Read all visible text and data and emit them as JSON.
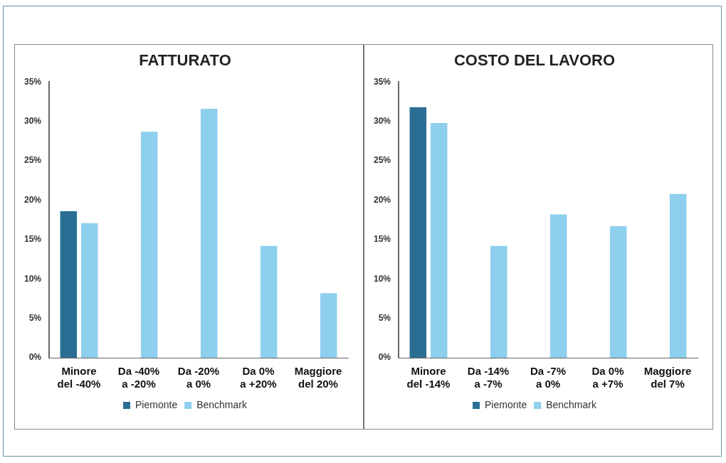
{
  "chart_data": [
    {
      "type": "bar",
      "title": "FATTURATO",
      "categories": [
        "Minore\ndel -40%",
        "Da -40%\na -20%",
        "Da -20%\na 0%",
        "Da 0%\na +20%",
        "Maggiore\ndel 20%"
      ],
      "series": [
        {
          "name": "Piemonte",
          "color": "#2a6f93",
          "values": [
            18.6,
            null,
            null,
            null,
            null
          ]
        },
        {
          "name": "Benchmark",
          "color": "#8ecfee",
          "values": [
            17.1,
            28.7,
            31.6,
            14.2,
            8.2
          ]
        }
      ],
      "ylim": [
        0,
        35
      ],
      "yticks": [
        {
          "value": 0,
          "label": "0%"
        },
        {
          "value": 5,
          "label": "5%"
        },
        {
          "value": 10,
          "label": "10%"
        },
        {
          "value": 15,
          "label": "15%"
        },
        {
          "value": 20,
          "label": "20%"
        },
        {
          "value": 25,
          "label": "25%"
        },
        {
          "value": 30,
          "label": "30%"
        },
        {
          "value": 35,
          "label": "35%"
        }
      ],
      "grid": false,
      "legend": "bottom"
    },
    {
      "type": "bar",
      "title": "COSTO DEL LAVORO",
      "categories": [
        "Minore\ndel -14%",
        "Da -14%\na -7%",
        "Da -7%\na 0%",
        "Da 0%\na +7%",
        "Maggiore\ndel 7%"
      ],
      "series": [
        {
          "name": "Piemonte",
          "color": "#2a6f93",
          "values": [
            31.8,
            null,
            null,
            null,
            null
          ]
        },
        {
          "name": "Benchmark",
          "color": "#8ecfee",
          "values": [
            29.8,
            14.2,
            18.2,
            16.7,
            20.8
          ]
        }
      ],
      "ylim": [
        0,
        35
      ],
      "yticks": [
        {
          "value": 0,
          "label": "0%"
        },
        {
          "value": 5,
          "label": "5%"
        },
        {
          "value": 10,
          "label": "10%"
        },
        {
          "value": 15,
          "label": "15%"
        },
        {
          "value": 20,
          "label": "20%"
        },
        {
          "value": 25,
          "label": "25%"
        },
        {
          "value": 30,
          "label": "30%"
        },
        {
          "value": 35,
          "label": "35%"
        }
      ],
      "grid": false,
      "legend": "bottom"
    }
  ]
}
